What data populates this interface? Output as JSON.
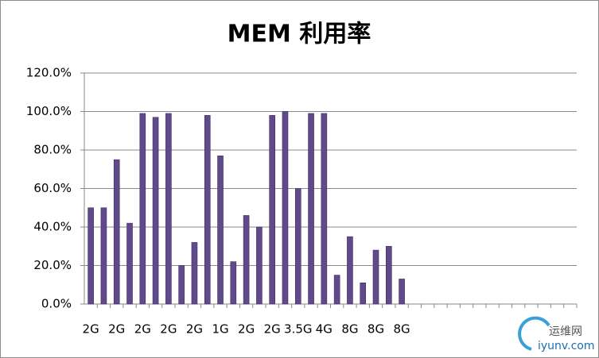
{
  "chart_data": {
    "type": "bar",
    "title": "MEM 利用率",
    "categories": [
      "2G",
      null,
      "2G",
      null,
      "2G",
      null,
      "2G",
      null,
      "2G",
      null,
      "1G",
      null,
      "2G",
      null,
      "2G",
      null,
      "3.5G",
      null,
      "4G",
      null,
      "8G",
      null,
      "8G",
      null,
      "8G",
      null,
      null,
      null,
      null,
      null,
      null,
      null,
      null,
      null,
      null,
      null,
      null,
      null
    ],
    "values": [
      50,
      50,
      75,
      42,
      99,
      97,
      99,
      20,
      32,
      98,
      77,
      22,
      46,
      40,
      98,
      100,
      60,
      99,
      99,
      15,
      35,
      11,
      28,
      30,
      13,
      null,
      null,
      null,
      null,
      null,
      null,
      null,
      null,
      null,
      null,
      null,
      null,
      null
    ],
    "color": "#604a8b",
    "ylim": [
      0,
      120
    ],
    "yticks": [
      {
        "value": 0,
        "label": "0.0%"
      },
      {
        "value": 20,
        "label": "20.0%"
      },
      {
        "value": 40,
        "label": "40.0%"
      },
      {
        "value": 60,
        "label": "60.0%"
      },
      {
        "value": 80,
        "label": "80.0%"
      },
      {
        "value": 100,
        "label": "100.0%"
      },
      {
        "value": 120,
        "label": "120.0%"
      }
    ],
    "grid": true,
    "watermark": {
      "name": "运维网",
      "site": "iyunv.com"
    }
  }
}
